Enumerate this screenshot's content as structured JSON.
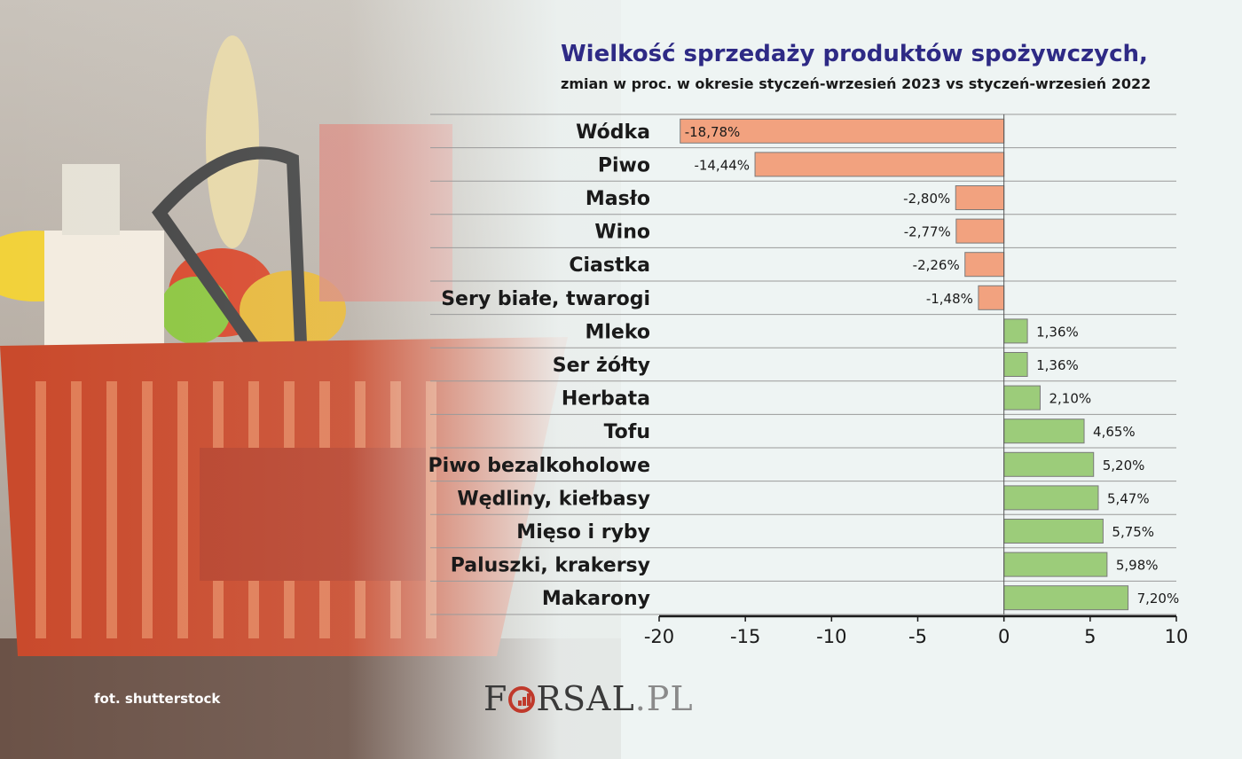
{
  "header": {
    "title": "Wielkość sprzedaży produktów spożywczych,",
    "subtitle": "zmian w proc. w okresie styczeń-wrzesień 2023 vs styczeń-wrzesień 2022"
  },
  "footer": {
    "photo_credit": "fot. shutterstock",
    "logo_pre": "F",
    "logo_post": "RSAL",
    "logo_suffix": ".PL"
  },
  "colors": {
    "negative": "#f2a27f",
    "positive": "#9ccc7a",
    "title": "#2e2a85"
  },
  "chart_data": {
    "type": "bar",
    "orientation": "horizontal",
    "categories": [
      "Wódka",
      "Piwo",
      "Masło",
      "Wino",
      "Ciastka",
      "Sery białe, twarogi",
      "Mleko",
      "Ser żółty",
      "Herbata",
      "Tofu",
      "Piwo bezalkoholowe",
      "Wędliny, kiełbasy",
      "Mięso i ryby",
      "Paluszki, krakersy",
      "Makarony"
    ],
    "values": [
      -18.78,
      -14.44,
      -2.8,
      -2.77,
      -2.26,
      -1.48,
      1.36,
      1.36,
      2.1,
      4.65,
      5.2,
      5.47,
      5.75,
      5.98,
      7.2
    ],
    "data_labels": [
      "-18,78%",
      "-14,44%",
      "-2,80%",
      "-2,77%",
      "-2,26%",
      "-1,48%",
      "1,36%",
      "1,36%",
      "2,10%",
      "4,65%",
      "5,20%",
      "5,47%",
      "5,75%",
      "5,98%",
      "7,20%"
    ],
    "xlim": [
      -20,
      10
    ],
    "xticks": [
      "-20",
      "-15",
      "-10",
      "-5",
      "0",
      "5",
      "10"
    ],
    "xtick_values": [
      -20,
      -15,
      -10,
      -5,
      0,
      5,
      10
    ],
    "grid": "horizontal row separators",
    "legend": "none"
  }
}
